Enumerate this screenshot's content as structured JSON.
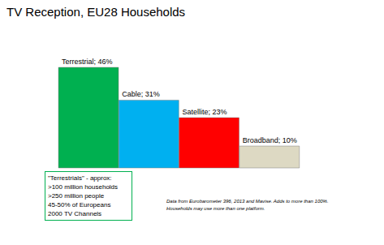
{
  "chart_data": {
    "type": "bar",
    "title": "TV Reception, EU28 Households",
    "categories": [
      "Terrestrial",
      "Cable",
      "Satellite",
      "Broadband"
    ],
    "values": [
      46,
      31,
      23,
      10
    ],
    "value_labels": [
      "Terrestrial; 46%",
      "Cable; 31%",
      "Satellite; 23%",
      "Broadband; 10%"
    ],
    "colors": [
      "#00b050",
      "#00b0f0",
      "#ff0000",
      "#ddd9c3"
    ],
    "data_labels": true,
    "tick_labels": false,
    "grid": false,
    "box_text": [
      "\"Terrestrials\" - approx:",
      ">100 million households",
      ">250 million people",
      "45-50% of Europeans",
      "2000 TV Channels"
    ],
    "note": [
      "Data from Eurobarometer 396, 2013 and Mavise. Adds to more than 100%.",
      "Households may use more than one platform."
    ]
  }
}
